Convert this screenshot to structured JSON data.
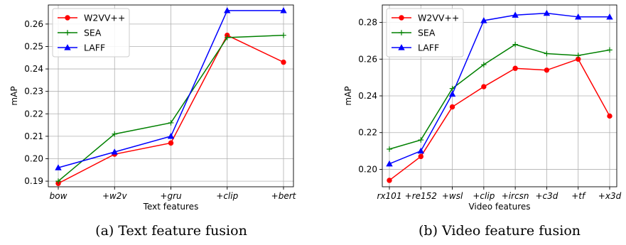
{
  "chart_data": [
    {
      "type": "line",
      "caption": "(a)  Text feature fusion",
      "xlabel": "Text features",
      "ylabel": "mAP",
      "categories": [
        "bow",
        "+w2v",
        "+gru",
        "+clip",
        "+bert"
      ],
      "ylim": [
        0.1875,
        0.2685
      ],
      "yticks": [
        0.19,
        0.2,
        0.21,
        0.22,
        0.23,
        0.24,
        0.25,
        0.26
      ],
      "grid": true,
      "legend": "top-left",
      "series": [
        {
          "name": "W2VV++",
          "color": "#ff0000",
          "marker": "circle",
          "values": [
            0.189,
            0.202,
            0.207,
            0.255,
            0.243
          ]
        },
        {
          "name": "SEA",
          "color": "#008000",
          "marker": "plus",
          "values": [
            0.19,
            0.211,
            0.216,
            0.254,
            0.255
          ]
        },
        {
          "name": "LAFF",
          "color": "#0000ff",
          "marker": "triangle",
          "values": [
            0.196,
            0.203,
            0.21,
            0.266,
            0.266
          ]
        }
      ]
    },
    {
      "type": "line",
      "caption": "(b)  Video feature fusion",
      "xlabel": "Video features",
      "ylabel": "mAP",
      "categories": [
        "rx101",
        "+re152",
        "+wsl",
        "+clip",
        "+ircsn",
        "+c3d",
        "+tf",
        "+x3d"
      ],
      "ylim": [
        0.1905,
        0.2895
      ],
      "yticks": [
        0.2,
        0.22,
        0.24,
        0.26,
        0.28
      ],
      "grid": true,
      "legend": "top-left",
      "series": [
        {
          "name": "W2VV++",
          "color": "#ff0000",
          "marker": "circle",
          "values": [
            0.194,
            0.207,
            0.234,
            0.245,
            0.255,
            0.254,
            0.26,
            0.229
          ]
        },
        {
          "name": "SEA",
          "color": "#008000",
          "marker": "plus",
          "values": [
            0.211,
            0.216,
            0.244,
            0.257,
            0.268,
            0.263,
            0.262,
            0.265
          ]
        },
        {
          "name": "LAFF",
          "color": "#0000ff",
          "marker": "triangle",
          "values": [
            0.203,
            0.21,
            0.241,
            0.281,
            0.284,
            0.285,
            0.283,
            0.283
          ]
        }
      ]
    }
  ]
}
